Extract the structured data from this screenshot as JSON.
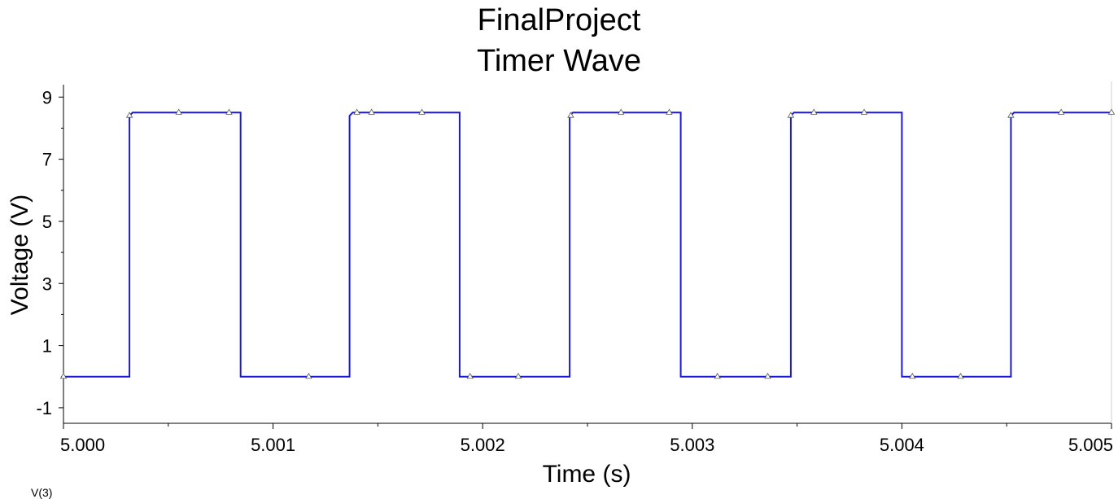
{
  "chart_data": {
    "type": "line",
    "title": [
      "FinalProject",
      "Timer Wave"
    ],
    "xlabel": "Time (s)",
    "ylabel": "Voltage (V)",
    "xlim": [
      5.0,
      5.005
    ],
    "ylim": [
      -1.5,
      9.4
    ],
    "xticks": [
      5.0,
      5.001,
      5.002,
      5.003,
      5.004,
      5.005
    ],
    "xtick_labels": [
      "5.000",
      "5.001",
      "5.002",
      "5.003",
      "5.004",
      "5.005"
    ],
    "yticks": [
      -1,
      1,
      3,
      5,
      7,
      9
    ],
    "ytick_labels": [
      "-1",
      "1",
      "3",
      "5",
      "7",
      "9"
    ],
    "grid": false,
    "series": [
      {
        "color": "#1a1ad6",
        "marker": "triangle",
        "x": [
          5.0,
          5.000315,
          5.000315,
          5.00033,
          5.000845,
          5.000845,
          5.001365,
          5.001365,
          5.00138,
          5.00189,
          5.00189,
          5.002415,
          5.002415,
          5.00243,
          5.002945,
          5.002945,
          5.00347,
          5.00347,
          5.003485,
          5.004,
          5.004,
          5.00452,
          5.00452,
          5.004535,
          5.005
        ],
        "y": [
          0,
          0,
          8.4,
          8.5,
          8.5,
          0,
          0,
          8.4,
          8.5,
          8.5,
          0,
          0,
          8.4,
          8.5,
          8.5,
          0,
          0,
          8.4,
          8.5,
          8.5,
          0,
          0,
          8.4,
          8.5,
          8.5
        ]
      }
    ],
    "markers_x": [
      5.0,
      5.000315,
      5.00055,
      5.00079,
      5.00117,
      5.0014,
      5.00147,
      5.00171,
      5.00194,
      5.00217,
      5.00242,
      5.00266,
      5.00289,
      5.00312,
      5.00336,
      5.00347,
      5.00358,
      5.00382,
      5.00405,
      5.00428,
      5.00452,
      5.00476,
      5.005
    ]
  },
  "footer_stub": "V(3)"
}
